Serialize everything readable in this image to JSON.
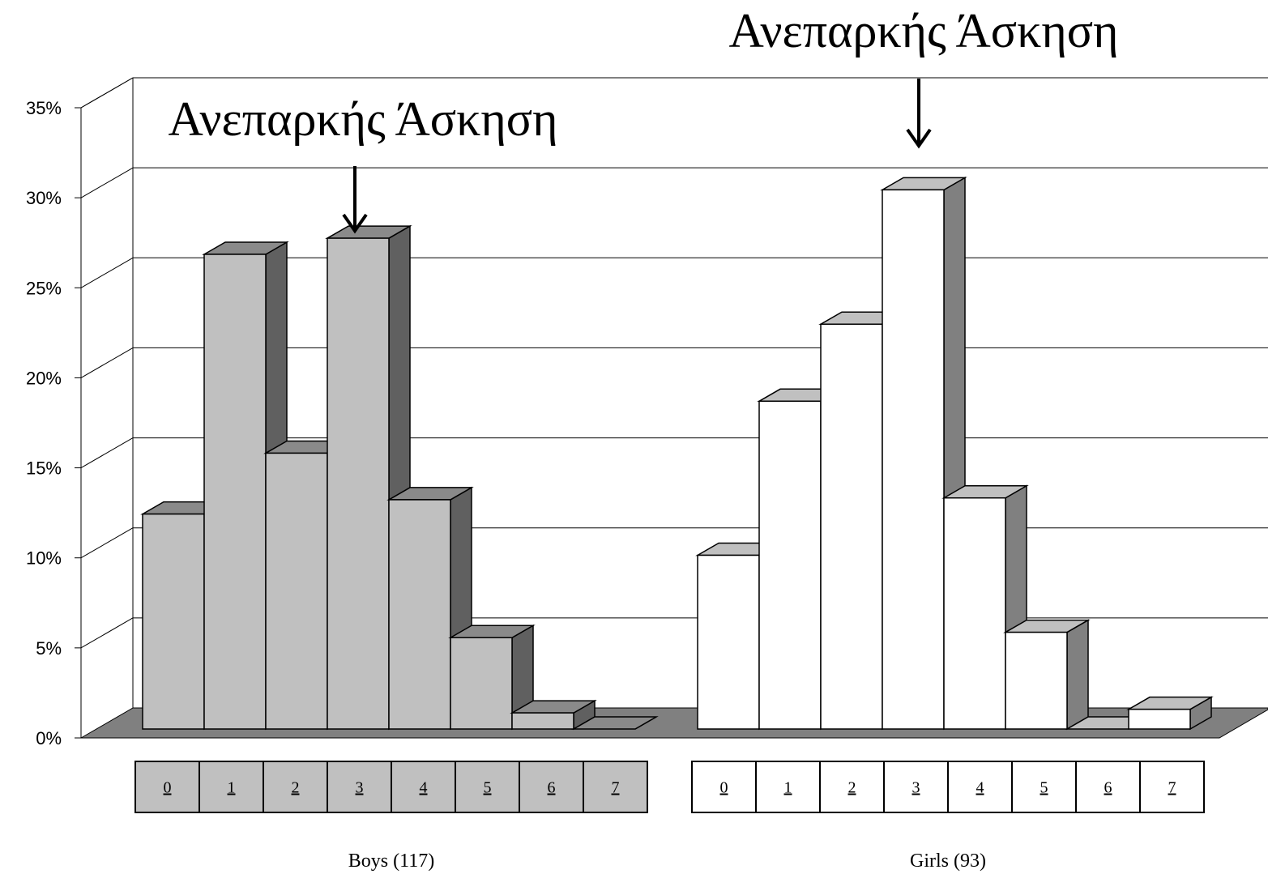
{
  "chart_data": {
    "type": "bar",
    "style": "3d-clustered-columns",
    "categories": [
      "0",
      "1",
      "2",
      "3",
      "4",
      "5",
      "6",
      "7"
    ],
    "groups": [
      {
        "name": "Boys (117)",
        "values": [
          12.0,
          26.5,
          15.4,
          27.4,
          12.8,
          5.1,
          0.9,
          0.0
        ],
        "color": "#c0c0c0",
        "side_color": "#606060",
        "top_color": "#8a8a8a"
      },
      {
        "name": "Girls (93)",
        "values": [
          9.7,
          18.3,
          22.6,
          30.1,
          12.9,
          5.4,
          0.0,
          1.1
        ],
        "color": "#ffffff",
        "side_color": "#808080",
        "top_color": "#c0c0c0"
      }
    ],
    "yticks": [
      "0%",
      "5%",
      "10%",
      "15%",
      "20%",
      "25%",
      "30%",
      "35%"
    ],
    "ylim": [
      0,
      35
    ],
    "grid": true,
    "floor_color": "#808080",
    "annotations": [
      {
        "text": "Ανεπαρκής Άσκηση",
        "group": 0,
        "category": "3"
      },
      {
        "text": "Ανεπαρκής Άσκηση",
        "group": 1,
        "category": "3"
      }
    ]
  }
}
